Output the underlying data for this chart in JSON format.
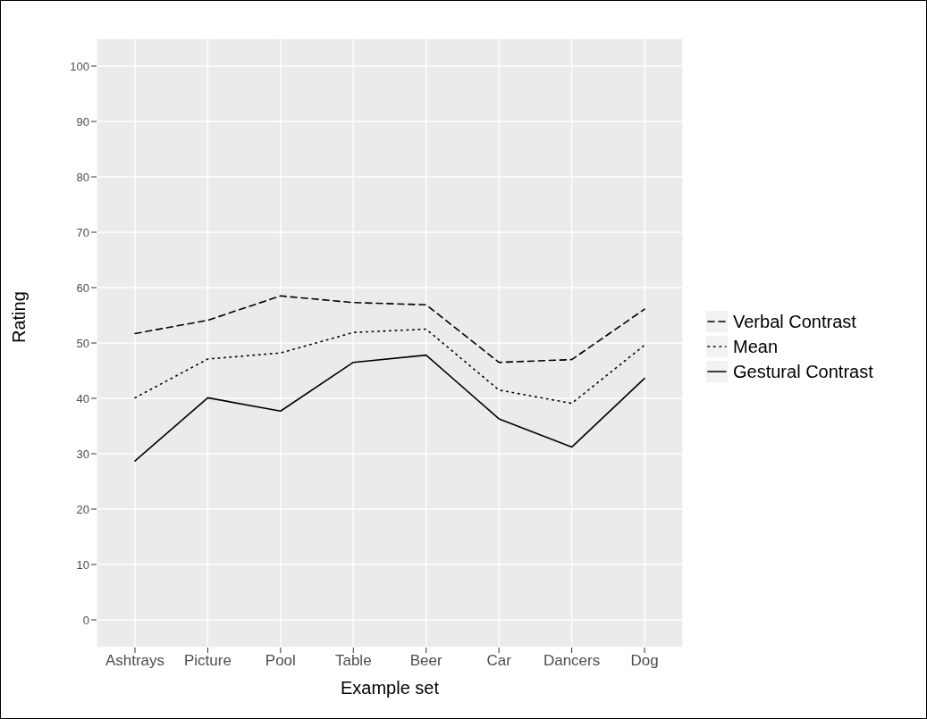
{
  "chart_data": {
    "type": "line",
    "xlabel": "Example set",
    "ylabel": "Rating",
    "categories": [
      "Ashtrays",
      "Picture",
      "Pool",
      "Table",
      "Beer",
      "Car",
      "Dancers",
      "Dog"
    ],
    "series": [
      {
        "name": "Verbal Contrast",
        "color": "#000000",
        "line_style": "dashed",
        "values": [
          51.7,
          54.1,
          58.5,
          57.3,
          56.9,
          46.5,
          47.0,
          56.1
        ]
      },
      {
        "name": "Mean",
        "color": "#000000",
        "line_style": "dotted",
        "values": [
          40.1,
          47.1,
          48.2,
          51.9,
          52.5,
          41.5,
          39.1,
          49.6
        ]
      },
      {
        "name": "Gestural Contrast",
        "color": "#000000",
        "line_style": "solid",
        "values": [
          28.7,
          40.1,
          37.7,
          46.5,
          47.8,
          36.3,
          31.2,
          43.6
        ]
      }
    ],
    "ylim": [
      -5,
      105
    ],
    "yticks": [
      0,
      10,
      20,
      30,
      40,
      50,
      60,
      70,
      80,
      90,
      100
    ],
    "grid": true,
    "legend": "right",
    "marker": "none"
  }
}
